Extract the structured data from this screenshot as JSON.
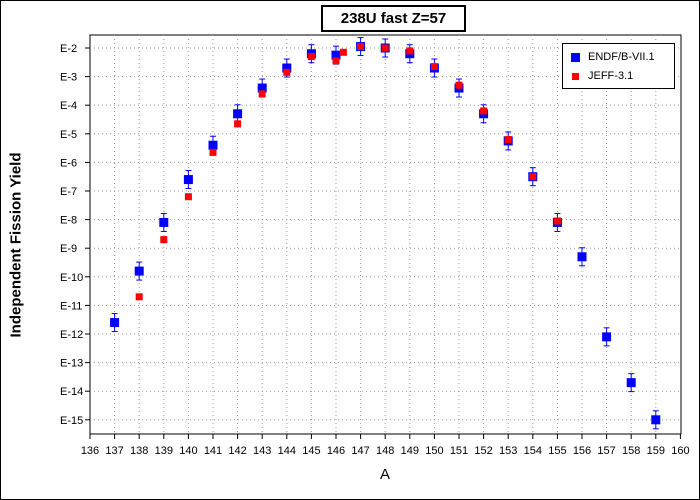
{
  "chart_data": {
    "type": "scatter",
    "title": "238U fast Z=57",
    "xlabel": "A",
    "ylabel": "Independent Fission Yield",
    "xlim": [
      136,
      160
    ],
    "x_ticks": [
      136,
      137,
      138,
      139,
      140,
      141,
      142,
      143,
      144,
      145,
      146,
      147,
      148,
      149,
      150,
      151,
      152,
      153,
      154,
      155,
      156,
      157,
      158,
      159,
      160
    ],
    "y_scale": "log",
    "y_ticks": [
      "E-2",
      "E-3",
      "E-4",
      "E-5",
      "E-6",
      "E-7",
      "E-8",
      "E-9",
      "E-10",
      "E-11",
      "E-12",
      "E-13",
      "E-14",
      "E-15"
    ],
    "y_tick_exponents": [
      -2,
      -3,
      -4,
      -5,
      -6,
      -7,
      -8,
      -9,
      -10,
      -11,
      -12,
      -13,
      -14,
      -15
    ],
    "ylim_exponent": [
      -15.5,
      -1.85
    ],
    "grid": true,
    "legend_position": "top-right",
    "series": [
      {
        "name": "ENDF/B-VII.1",
        "color": "#0000ff",
        "marker": "square",
        "points": [
          {
            "x": 137,
            "log_y": -11.6
          },
          {
            "x": 138,
            "log_y": -9.8
          },
          {
            "x": 139,
            "log_y": -8.1
          },
          {
            "x": 140,
            "log_y": -6.6
          },
          {
            "x": 141,
            "log_y": -5.4
          },
          {
            "x": 142,
            "log_y": -4.3
          },
          {
            "x": 143,
            "log_y": -3.4
          },
          {
            "x": 144,
            "log_y": -2.7
          },
          {
            "x": 145,
            "log_y": -2.2
          },
          {
            "x": 146,
            "log_y": -2.25
          },
          {
            "x": 147,
            "log_y": -1.95
          },
          {
            "x": 148,
            "log_y": -2.0
          },
          {
            "x": 149,
            "log_y": -2.2
          },
          {
            "x": 150,
            "log_y": -2.7
          },
          {
            "x": 151,
            "log_y": -3.4
          },
          {
            "x": 152,
            "log_y": -4.3
          },
          {
            "x": 153,
            "log_y": -5.25
          },
          {
            "x": 154,
            "log_y": -6.5
          },
          {
            "x": 155,
            "log_y": -8.1
          },
          {
            "x": 156,
            "log_y": -9.3
          },
          {
            "x": 157,
            "log_y": -12.1
          },
          {
            "x": 158,
            "log_y": -13.7
          },
          {
            "x": 159,
            "log_y": -15.0
          }
        ]
      },
      {
        "name": "JEFF-3.1",
        "color": "#ff0000",
        "marker": "square",
        "points": [
          {
            "x": 138,
            "log_y": -10.7
          },
          {
            "x": 139,
            "log_y": -8.7
          },
          {
            "x": 140,
            "log_y": -7.2
          },
          {
            "x": 141,
            "log_y": -5.65
          },
          {
            "x": 142,
            "log_y": -4.65
          },
          {
            "x": 143,
            "log_y": -3.6
          },
          {
            "x": 144,
            "log_y": -2.85
          },
          {
            "x": 145,
            "log_y": -2.3
          },
          {
            "x": 146,
            "log_y": -2.45
          },
          {
            "x": 146.3,
            "log_y": -2.15
          },
          {
            "x": 147,
            "log_y": -1.95
          },
          {
            "x": 148,
            "log_y": -2.0
          },
          {
            "x": 149,
            "log_y": -2.1
          },
          {
            "x": 150,
            "log_y": -2.65
          },
          {
            "x": 151,
            "log_y": -3.3
          },
          {
            "x": 152,
            "log_y": -4.2
          },
          {
            "x": 153,
            "log_y": -5.2
          },
          {
            "x": 154,
            "log_y": -6.5
          },
          {
            "x": 155,
            "log_y": -8.05
          }
        ]
      }
    ]
  }
}
